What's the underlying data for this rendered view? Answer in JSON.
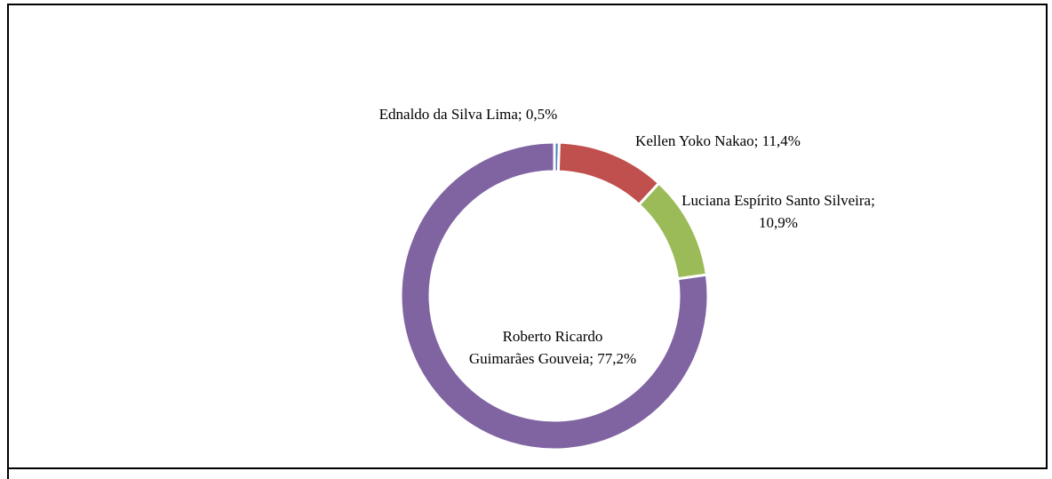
{
  "chart_data": {
    "type": "donut",
    "categories": [
      "Ednaldo da Silva Lima;",
      "Kellen Yoko Nakao;",
      "Luciana Espírito Santo Silveira;",
      "Roberto Ricardo Guimarães Gouveia;"
    ],
    "values": [
      0.5,
      11.4,
      10.9,
      77.2
    ],
    "value_labels": [
      "0,5%",
      "11,4%",
      "10,9%",
      "77,2%"
    ],
    "colors": [
      "#4f81bd",
      "#c0504d",
      "#9bbb59",
      "#8064a2"
    ]
  }
}
